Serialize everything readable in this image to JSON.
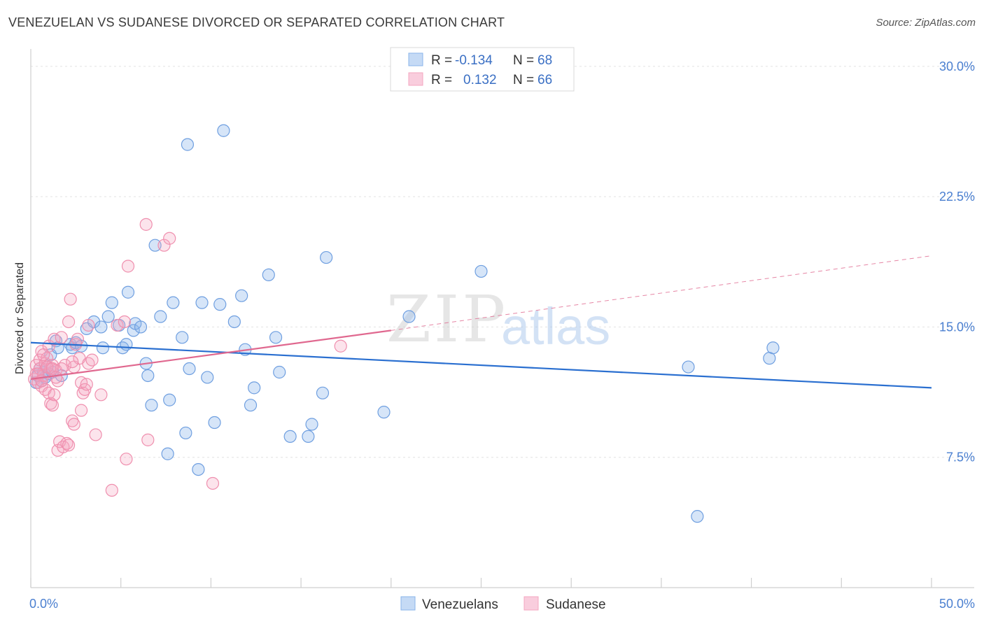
{
  "title": "VENEZUELAN VS SUDANESE DIVORCED OR SEPARATED CORRELATION CHART",
  "source": "Source: ZipAtlas.com",
  "watermark": {
    "zip": "ZIP",
    "atlas": "atlas"
  },
  "colors": {
    "venezuelan": "#8ab4ea",
    "venezuelan_line": "#2a6fd0",
    "sudanese": "#f4a6c0",
    "sudanese_line": "#e0688f",
    "axis_label": "#4a7fd0",
    "grid": "#e2e2e2"
  },
  "legend_top": {
    "rows": [
      {
        "r_label": "R =",
        "r_value": "-0.134",
        "n_label": "N =",
        "n_value": "68"
      },
      {
        "r_label": "R =",
        "r_value": "0.132",
        "n_label": "N =",
        "n_value": "66"
      }
    ]
  },
  "legend_bottom": {
    "venezuelans": "Venezuelans",
    "sudanese": "Sudanese"
  },
  "chart_data": {
    "type": "scatter",
    "ylabel": "Divorced or Separated",
    "xlim": [
      0,
      50
    ],
    "ylim": [
      0,
      31
    ],
    "x_tick_labels": [
      "0.0%",
      "50.0%"
    ],
    "y_ticks": [
      7.5,
      15.0,
      22.5,
      30.0
    ],
    "y_tick_labels": [
      "7.5%",
      "15.0%",
      "22.5%",
      "30.0%"
    ],
    "grid": true,
    "series": [
      {
        "name": "Venezuelans",
        "r": -0.134,
        "n": 68,
        "trend": {
          "x": [
            0,
            50
          ],
          "y": [
            14.1,
            11.5
          ]
        },
        "points": [
          [
            0.3,
            11.8
          ],
          [
            0.4,
            12.2
          ],
          [
            0.5,
            12.6
          ],
          [
            0.6,
            11.9
          ],
          [
            0.7,
            12.4
          ],
          [
            0.8,
            12.1
          ],
          [
            0.9,
            12.7
          ],
          [
            1.0,
            12.3
          ],
          [
            1.1,
            13.4
          ],
          [
            1.2,
            12.4
          ],
          [
            1.4,
            14.2
          ],
          [
            1.5,
            13.8
          ],
          [
            1.7,
            12.2
          ],
          [
            2.2,
            14.0
          ],
          [
            2.3,
            13.8
          ],
          [
            2.5,
            14.1
          ],
          [
            2.8,
            13.9
          ],
          [
            3.1,
            14.9
          ],
          [
            3.5,
            15.3
          ],
          [
            3.9,
            15.0
          ],
          [
            4.0,
            13.8
          ],
          [
            4.3,
            15.6
          ],
          [
            4.5,
            16.4
          ],
          [
            4.9,
            15.1
          ],
          [
            5.1,
            13.8
          ],
          [
            5.3,
            14.0
          ],
          [
            5.4,
            17.0
          ],
          [
            5.7,
            14.8
          ],
          [
            5.8,
            15.2
          ],
          [
            6.1,
            15.0
          ],
          [
            6.4,
            12.9
          ],
          [
            6.5,
            12.2
          ],
          [
            6.7,
            10.5
          ],
          [
            6.9,
            19.7
          ],
          [
            7.2,
            15.6
          ],
          [
            7.7,
            10.8
          ],
          [
            7.6,
            7.7
          ],
          [
            7.9,
            16.4
          ],
          [
            8.4,
            14.4
          ],
          [
            8.6,
            8.9
          ],
          [
            8.7,
            25.5
          ],
          [
            8.8,
            12.6
          ],
          [
            9.3,
            6.8
          ],
          [
            9.5,
            16.4
          ],
          [
            9.8,
            12.1
          ],
          [
            10.2,
            9.5
          ],
          [
            10.5,
            16.3
          ],
          [
            10.7,
            26.3
          ],
          [
            11.3,
            15.3
          ],
          [
            11.7,
            16.8
          ],
          [
            11.9,
            13.7
          ],
          [
            12.2,
            10.5
          ],
          [
            12.4,
            11.5
          ],
          [
            13.2,
            18.0
          ],
          [
            13.6,
            14.4
          ],
          [
            13.8,
            12.4
          ],
          [
            14.4,
            8.7
          ],
          [
            15.4,
            8.7
          ],
          [
            15.6,
            9.4
          ],
          [
            16.2,
            11.2
          ],
          [
            16.4,
            19.0
          ],
          [
            19.6,
            10.1
          ],
          [
            21.0,
            15.6
          ],
          [
            25.0,
            18.2
          ],
          [
            36.5,
            12.7
          ],
          [
            37.0,
            4.1
          ],
          [
            41.0,
            13.2
          ],
          [
            41.2,
            13.8
          ]
        ]
      },
      {
        "name": "Sudanese",
        "r": 0.132,
        "n": 66,
        "trend": {
          "x": [
            0,
            20
          ],
          "y": [
            12.0,
            14.8
          ]
        },
        "trend_dashed": {
          "x": [
            20,
            50
          ],
          "y": [
            14.8,
            19.1
          ]
        },
        "points": [
          [
            0.2,
            12.0
          ],
          [
            0.3,
            12.3
          ],
          [
            0.3,
            12.8
          ],
          [
            0.4,
            11.8
          ],
          [
            0.5,
            12.6
          ],
          [
            0.5,
            13.1
          ],
          [
            0.6,
            11.6
          ],
          [
            0.6,
            13.6
          ],
          [
            0.7,
            12.2
          ],
          [
            0.8,
            11.4
          ],
          [
            0.8,
            12.9
          ],
          [
            0.9,
            13.2
          ],
          [
            1.0,
            11.2
          ],
          [
            1.0,
            13.9
          ],
          [
            1.1,
            10.6
          ],
          [
            1.1,
            12.6
          ],
          [
            1.2,
            10.5
          ],
          [
            1.2,
            12.8
          ],
          [
            1.3,
            11.1
          ],
          [
            1.3,
            14.3
          ],
          [
            1.4,
            12.5
          ],
          [
            1.5,
            11.9
          ],
          [
            1.5,
            7.9
          ],
          [
            1.6,
            8.4
          ],
          [
            1.7,
            12.6
          ],
          [
            1.7,
            14.4
          ],
          [
            1.8,
            8.1
          ],
          [
            1.9,
            12.8
          ],
          [
            2.0,
            8.3
          ],
          [
            2.1,
            8.2
          ],
          [
            2.1,
            15.3
          ],
          [
            2.2,
            16.6
          ],
          [
            2.3,
            9.6
          ],
          [
            2.4,
            9.4
          ],
          [
            2.4,
            12.7
          ],
          [
            2.5,
            14.0
          ],
          [
            2.6,
            14.3
          ],
          [
            2.7,
            13.2
          ],
          [
            2.8,
            10.2
          ],
          [
            2.8,
            11.8
          ],
          [
            2.9,
            11.2
          ],
          [
            3.0,
            11.4
          ],
          [
            3.1,
            11.7
          ],
          [
            3.2,
            12.9
          ],
          [
            3.2,
            15.1
          ],
          [
            3.4,
            13.1
          ],
          [
            3.6,
            8.8
          ],
          [
            3.9,
            11.1
          ],
          [
            4.5,
            5.6
          ],
          [
            4.8,
            15.1
          ],
          [
            5.2,
            15.3
          ],
          [
            5.3,
            7.4
          ],
          [
            5.4,
            18.5
          ],
          [
            6.4,
            20.9
          ],
          [
            6.5,
            8.5
          ],
          [
            7.4,
            19.7
          ],
          [
            7.7,
            20.1
          ],
          [
            10.1,
            6.0
          ],
          [
            17.2,
            13.9
          ],
          [
            0.9,
            12.7
          ],
          [
            1.2,
            12.6
          ],
          [
            0.4,
            12.3
          ],
          [
            0.6,
            11.9
          ],
          [
            2.3,
            13.0
          ],
          [
            1.4,
            12.1
          ],
          [
            0.7,
            13.4
          ]
        ]
      }
    ]
  }
}
